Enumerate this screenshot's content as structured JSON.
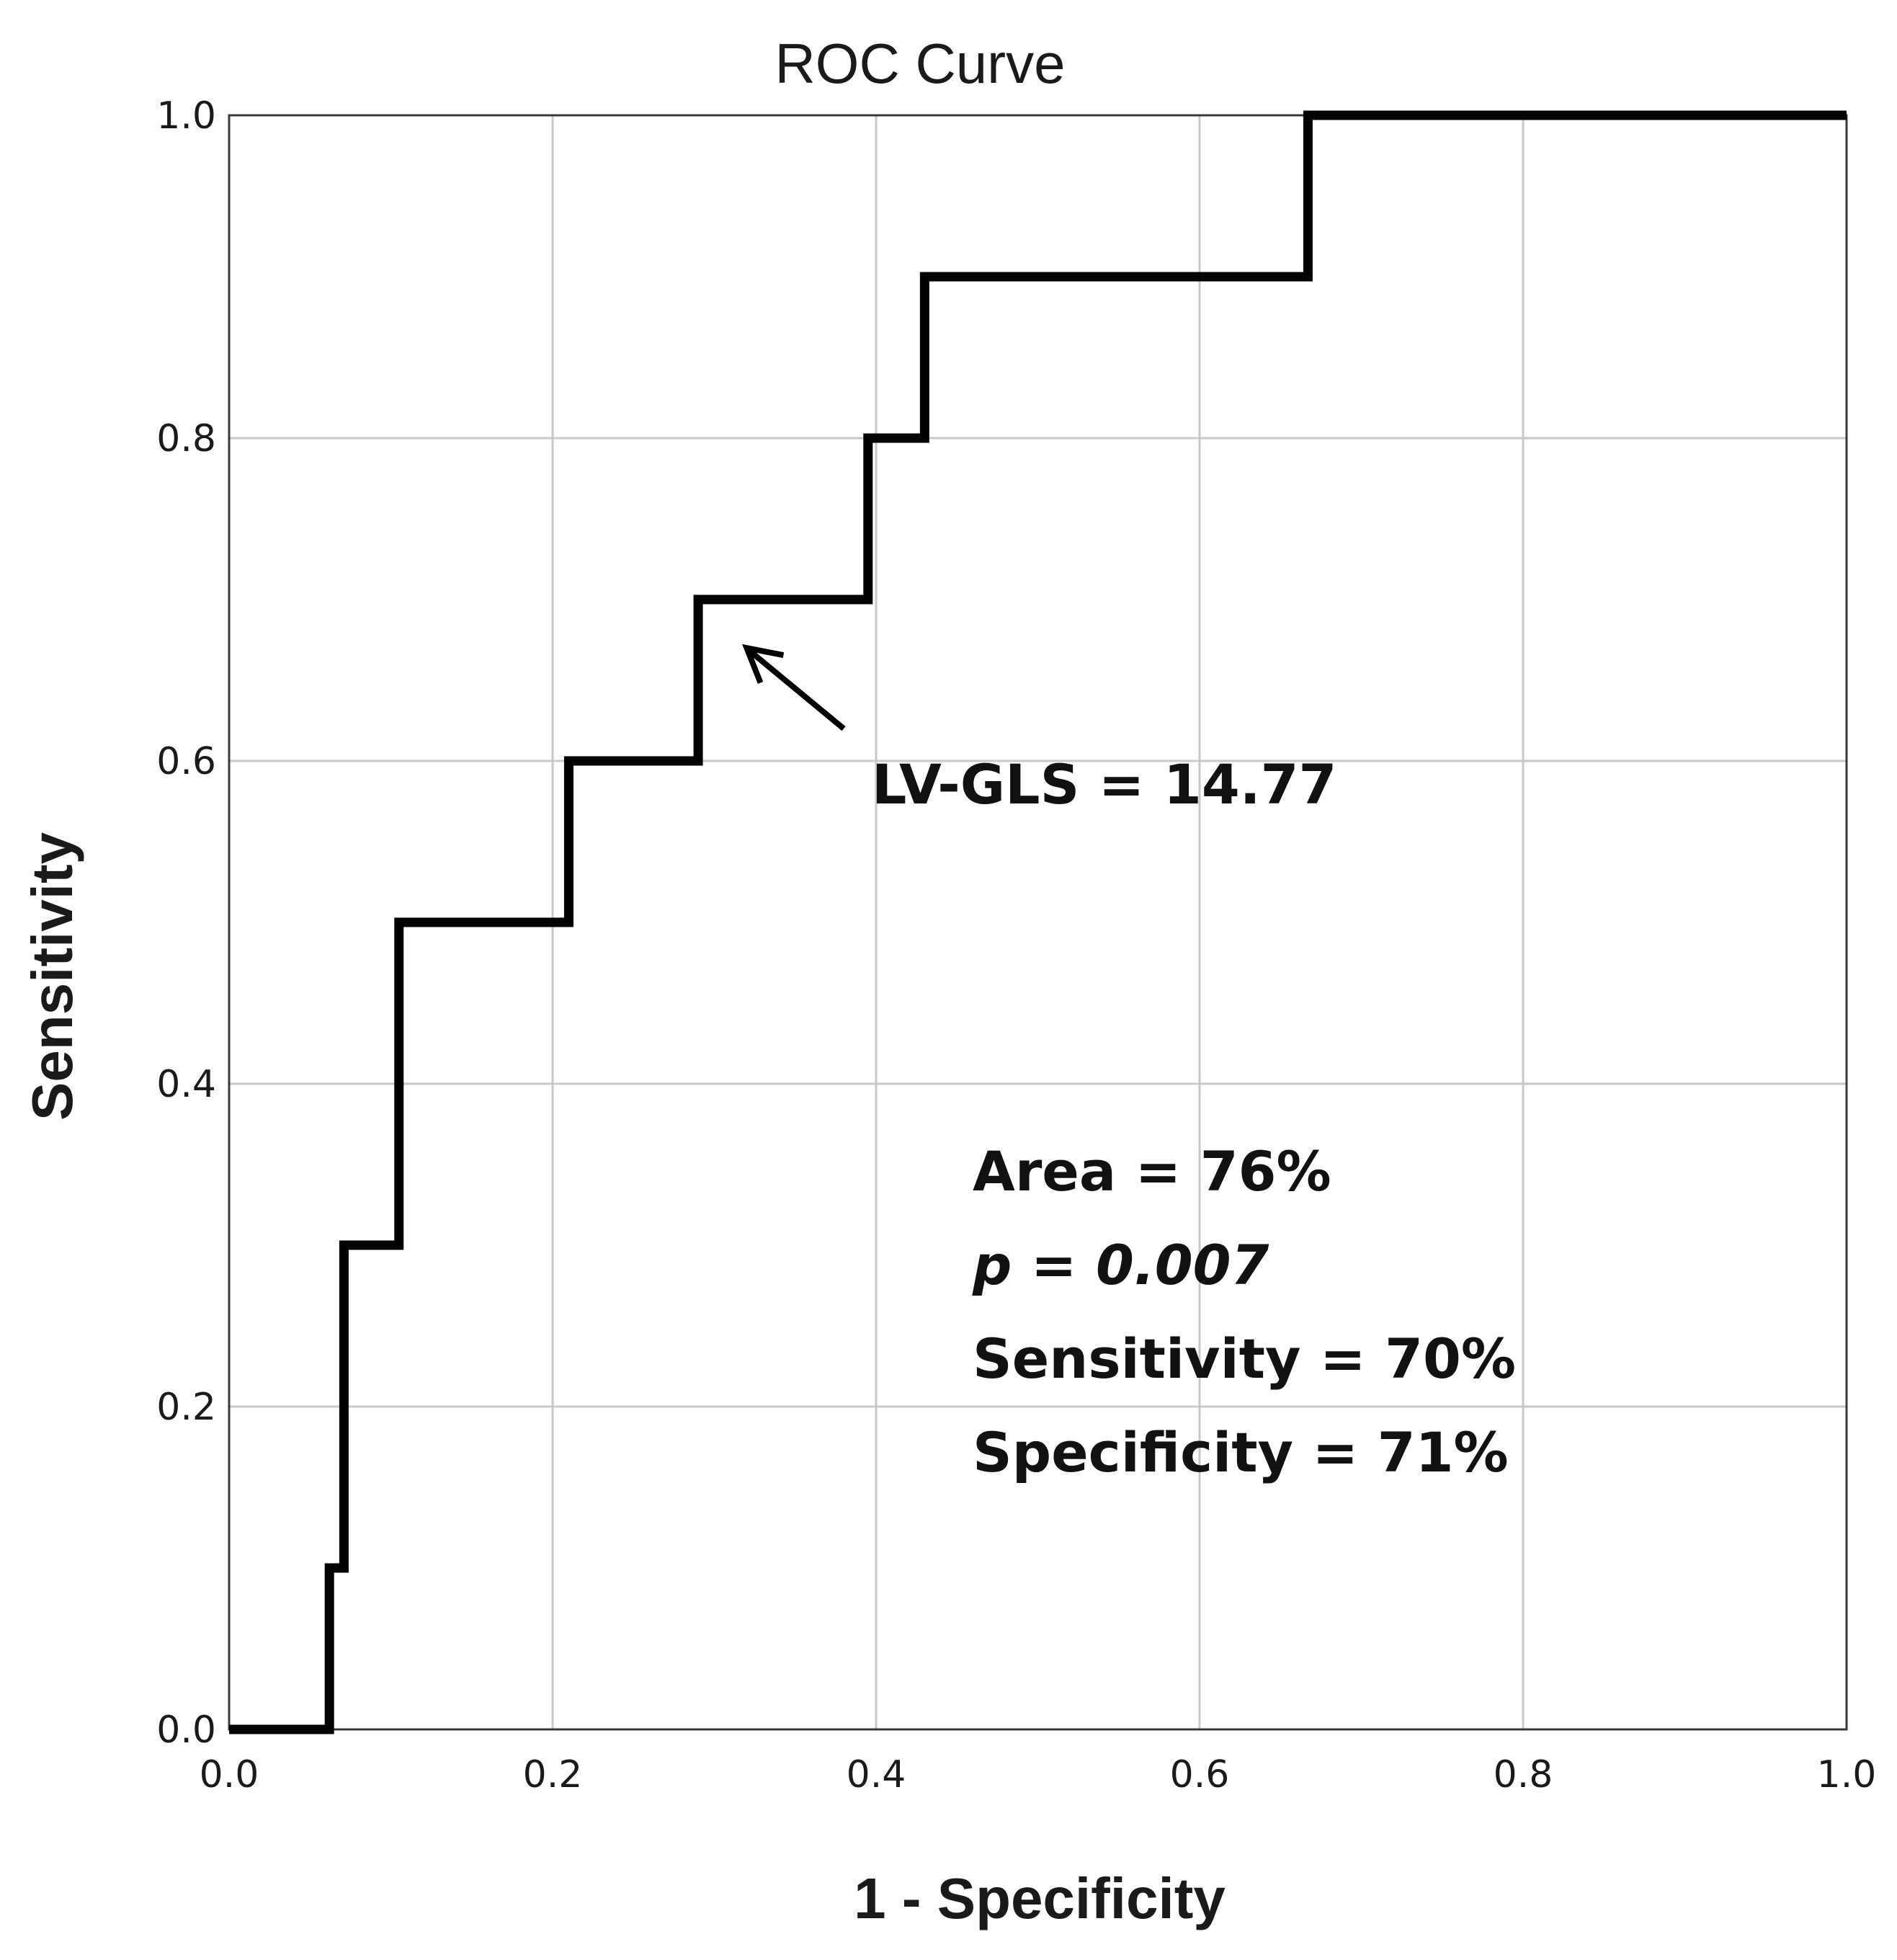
{
  "chart_data": {
    "type": "line",
    "title": "ROC Curve",
    "xlabel": "1 - Specificity",
    "ylabel": "Sensitivity",
    "xlim": [
      0.0,
      1.0
    ],
    "ylim": [
      0.0,
      1.0
    ],
    "xticks": [
      "0.0",
      "0.2",
      "0.4",
      "0.6",
      "0.8",
      "1.0"
    ],
    "yticks": [
      "0.0",
      "0.2",
      "0.4",
      "0.6",
      "0.8",
      "1.0"
    ],
    "xtick_values": [
      0.0,
      0.2,
      0.4,
      0.6,
      0.8,
      1.0
    ],
    "ytick_values": [
      0.0,
      0.2,
      0.4,
      0.6,
      0.8,
      1.0
    ],
    "grid": true,
    "series": [
      {
        "name": "ROC",
        "color": "#000000",
        "x": [
          0.0,
          0.062,
          0.062,
          0.071,
          0.071,
          0.105,
          0.105,
          0.21,
          0.21,
          0.29,
          0.29,
          0.395,
          0.395,
          0.43,
          0.43,
          0.667,
          0.667,
          1.0
        ],
        "y": [
          0.0,
          0.0,
          0.1,
          0.1,
          0.3,
          0.3,
          0.5,
          0.5,
          0.6,
          0.6,
          0.7,
          0.7,
          0.8,
          0.8,
          0.9,
          0.9,
          1.0,
          1.0
        ]
      }
    ],
    "annotations": {
      "cutoff_label": "LV-GLS = 14.77",
      "cutoff_point": {
        "x": 0.32,
        "y": 0.67
      },
      "arrow_from": {
        "x": 0.38,
        "y": 0.62
      },
      "stats": [
        {
          "text": "Area = 76%",
          "italic": false
        },
        {
          "text": "p = 0.007",
          "italic": true
        },
        {
          "text": "Sensitivity = 70%",
          "italic": false
        },
        {
          "text": "Specificity = 71%",
          "italic": false
        }
      ]
    }
  }
}
